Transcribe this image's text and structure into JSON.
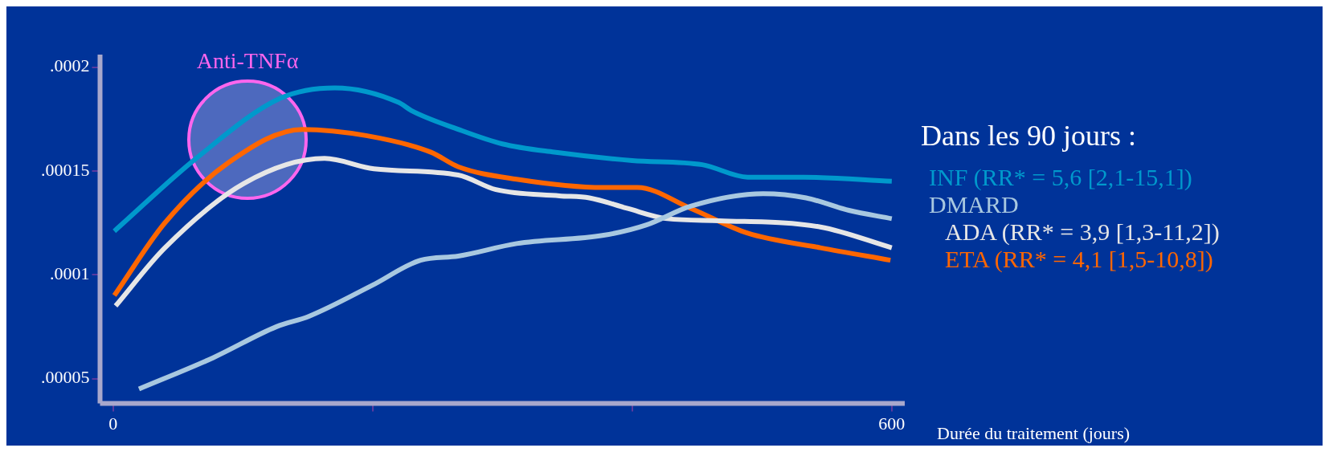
{
  "chart_data": {
    "type": "line",
    "xlabel": "Durée du traitement (jours)",
    "legend_title": "Dans les 90 jours :",
    "legend": "right",
    "xlim": [
      -10,
      610
    ],
    "xticks": [
      0,
      {
        "value": 200,
        "label": null
      },
      {
        "value": 400,
        "label": null
      },
      600
    ],
    "ylim": [
      3.8e-05,
      0.000206
    ],
    "yticks": [
      {
        "value": 5e-05,
        "label": ".00005"
      },
      {
        "value": 0.0001,
        "label": ".0001"
      },
      {
        "value": 0.00015,
        "label": ".00015"
      },
      {
        "value": 0.0002,
        "label": ".0002"
      }
    ],
    "grid": false,
    "annotations": [
      "Anti-TNFα"
    ],
    "series": [
      {
        "name": "INF (RR* = 5,6 [2,1-15,1])",
        "color": "#0099cc",
        "x": [
          1,
          64,
          129,
          171,
          220,
          230,
          266,
          300,
          340,
          400,
          454,
          489,
          532,
          600
        ],
        "values": [
          0.000121,
          0.000156,
          0.000185,
          0.00019,
          0.000183,
          0.000179,
          0.00017,
          0.000163,
          0.000159,
          0.000155,
          0.000153,
          0.000147,
          0.000147,
          0.000145
        ]
      },
      {
        "name": "DMARD",
        "color": "#a8c8e0",
        "x": [
          20,
          77,
          126,
          151,
          200,
          237,
          266,
          311,
          378,
          411,
          445,
          501,
          534,
          567,
          600
        ],
        "values": [
          4.5e-05,
          6e-05,
          7.5e-05,
          8e-05,
          9.5e-05,
          0.000107,
          0.000109,
          0.000115,
          0.000119,
          0.000124,
          0.000133,
          0.000139,
          0.000137,
          0.000131,
          0.000127
        ]
      },
      {
        "name": "ADA (RR* = 3,9 [1,3-11,2])",
        "color": "#e6e6e6",
        "x": [
          2,
          40,
          101,
          163,
          201,
          266,
          295,
          344,
          367,
          396,
          427,
          467,
          545,
          600
        ],
        "values": [
          8.5e-05,
          0.000113,
          0.000144,
          0.000156,
          0.000151,
          0.000148,
          0.000141,
          0.000138,
          0.000137,
          0.000132,
          0.000127,
          0.000126,
          0.000123,
          0.000113
        ]
      },
      {
        "name": "ETA (RR* = 4,1 [1,5-10,8])",
        "color": "#ff6600",
        "x": [
          1,
          40,
          89,
          146,
          195,
          245,
          266,
          311,
          378,
          404,
          445,
          489,
          545,
          599
        ],
        "values": [
          9e-05,
          0.000125,
          0.000154,
          0.00017,
          0.000167,
          0.000159,
          0.000152,
          0.000146,
          0.000142,
          0.000142,
          0.000132,
          0.00012,
          0.000113,
          0.000107
        ]
      }
    ]
  }
}
